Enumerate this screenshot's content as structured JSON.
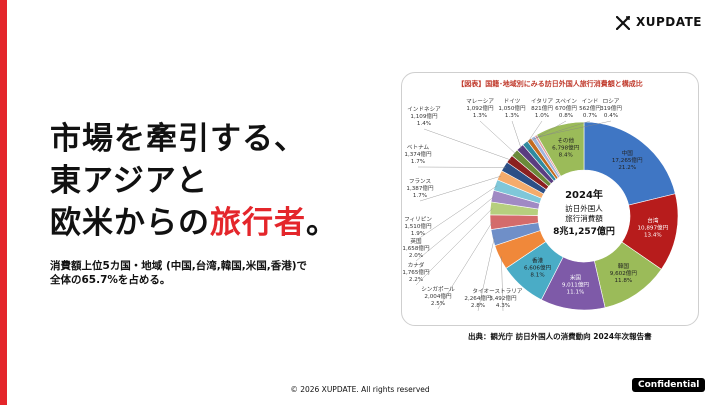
{
  "brand": {
    "name": "XUPDATE"
  },
  "headline": {
    "line1": "市場を牽引する、",
    "line2": "東アジアと",
    "line3_prefix": "欧米からの",
    "line3_accent": "旅行者",
    "line3_suffix": "。"
  },
  "subtext": {
    "line1": "消費額上位5カ国・地域 (中国,台湾,韓国,米国,香港)で",
    "line2": "全体の65.7%を占める。"
  },
  "chart_data": {
    "type": "pie",
    "title": "【図表】国籍･地域別にみる訪日外国人旅行消費額と構成比",
    "center": {
      "year": "2024年",
      "line1": "訪日外国人",
      "line2": "旅行消費額",
      "total": "8兆1,257億円"
    },
    "slices": [
      {
        "name": "中国",
        "amount": "17,265億円",
        "pct": "21.2%",
        "value": 21.2,
        "color": "#3f76c4"
      },
      {
        "name": "台湾",
        "amount": "10,897億円",
        "pct": "13.4%",
        "value": 13.4,
        "color": "#b71c1c"
      },
      {
        "name": "韓国",
        "amount": "9,602億円",
        "pct": "11.8%",
        "value": 11.8,
        "color": "#9bbb59"
      },
      {
        "name": "米国",
        "amount": "9,011億円",
        "pct": "11.1%",
        "value": 11.1,
        "color": "#7e5aa8"
      },
      {
        "name": "香港",
        "amount": "6,606億円",
        "pct": "8.1%",
        "value": 8.1,
        "color": "#4aacc6"
      },
      {
        "name": "オーストラリア",
        "amount": "3,492億円",
        "pct": "4.3%",
        "value": 4.3,
        "color": "#f0883a"
      },
      {
        "name": "タイ",
        "amount": "2,264億円",
        "pct": "2.8%",
        "value": 2.8,
        "color": "#6f8fc8"
      },
      {
        "name": "シンガポール",
        "amount": "2,004億円",
        "pct": "2.5%",
        "value": 2.5,
        "color": "#d46b6b"
      },
      {
        "name": "カナダ",
        "amount": "1,765億円",
        "pct": "2.2%",
        "value": 2.2,
        "color": "#b6cf7e"
      },
      {
        "name": "英国",
        "amount": "1,658億円",
        "pct": "2.0%",
        "value": 2.0,
        "color": "#a08ac4"
      },
      {
        "name": "フィリピン",
        "amount": "1,510億円",
        "pct": "1.9%",
        "value": 1.9,
        "color": "#7fc7d9"
      },
      {
        "name": "フランス",
        "amount": "1,387億円",
        "pct": "1.7%",
        "value": 1.7,
        "color": "#f5ab6b"
      },
      {
        "name": "ベトナム",
        "amount": "1,374億円",
        "pct": "1.7%",
        "value": 1.7,
        "color": "#2c4f86"
      },
      {
        "name": "インドネシア",
        "amount": "1,109億円",
        "pct": "1.4%",
        "value": 1.4,
        "color": "#8b2020"
      },
      {
        "name": "マレーシア",
        "amount": "1,092億円",
        "pct": "1.3%",
        "value": 1.3,
        "color": "#6b8a3a"
      },
      {
        "name": "ドイツ",
        "amount": "1,050億円",
        "pct": "1.3%",
        "value": 1.3,
        "color": "#5a3d80"
      },
      {
        "name": "イタリア",
        "amount": "821億円",
        "pct": "1.0%",
        "value": 1.0,
        "color": "#2f8aa0"
      },
      {
        "name": "スペイン",
        "amount": "670億円",
        "pct": "0.8%",
        "value": 0.8,
        "color": "#c46a20"
      },
      {
        "name": "インド",
        "amount": "562億円",
        "pct": "0.7%",
        "value": 0.7,
        "color": "#9fb3dc"
      },
      {
        "name": "ロシア",
        "amount": "319億円",
        "pct": "0.4%",
        "value": 0.4,
        "color": "#e39c9c"
      },
      {
        "name": "その他",
        "amount": "6,798億円",
        "pct": "8.4%",
        "value": 8.4,
        "color": "#9bbb59"
      }
    ]
  },
  "source": "出典：観光庁 訪日外国人の消費動向 2024年次報告書",
  "footer": {
    "copyright": "© 2026 XUPDATE. All rights reserved",
    "badge": "Confidential"
  }
}
